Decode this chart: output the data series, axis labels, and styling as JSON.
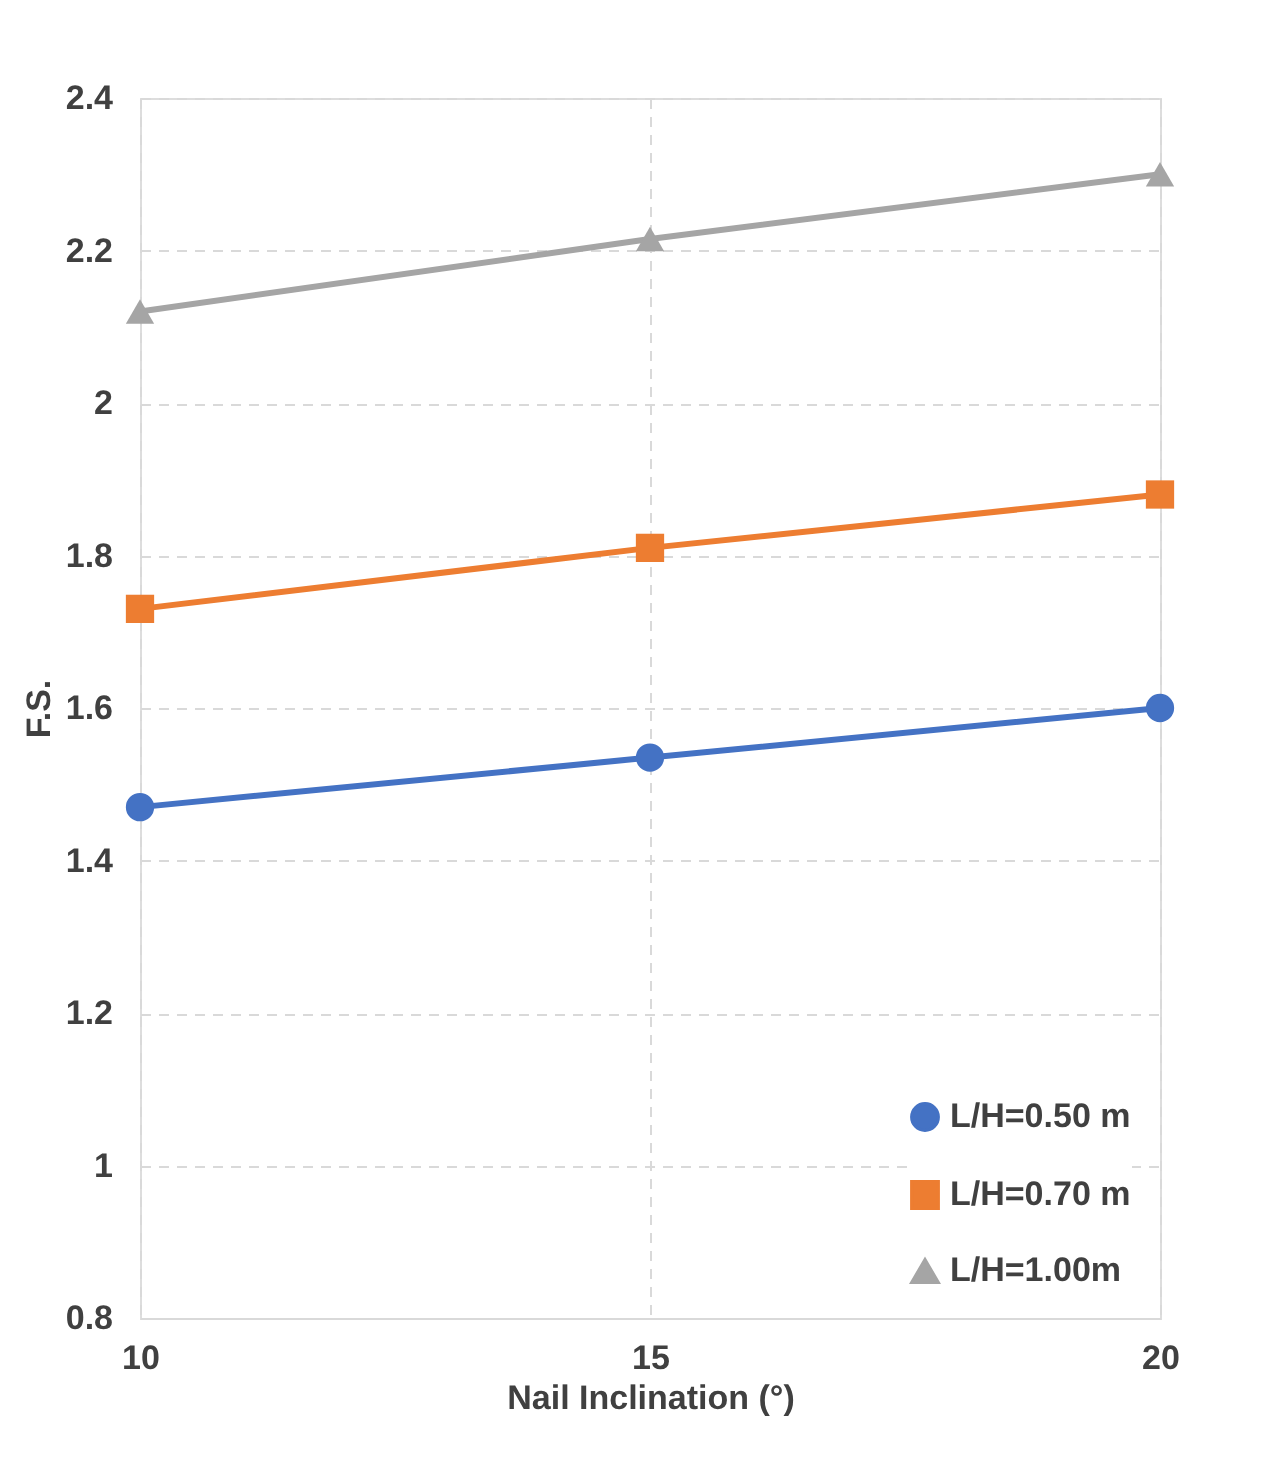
{
  "chart_data": {
    "type": "line",
    "xlabel": "Nail Inclination (°)",
    "ylabel": "F.S.",
    "x": [
      10,
      15,
      20
    ],
    "series": [
      {
        "name": "L/H=0.50 m",
        "color": "#4472c4",
        "marker": "circle",
        "values": [
          1.47,
          1.535,
          1.6
        ]
      },
      {
        "name": "L/H=0.70 m",
        "color": "#ed7d31",
        "marker": "square",
        "values": [
          1.73,
          1.81,
          1.88
        ]
      },
      {
        "name": "L/H=1.00m",
        "color": "#a5a5a5",
        "marker": "triangle",
        "values": [
          2.12,
          2.215,
          2.3
        ]
      }
    ],
    "xlim": [
      10,
      20
    ],
    "xticks": [
      10,
      15,
      20
    ],
    "ylim": [
      0.8,
      2.4
    ],
    "yticks": [
      0.8,
      1,
      1.2,
      1.4,
      1.6,
      1.8,
      2,
      2.2,
      2.4
    ],
    "grid": true,
    "legend": "bottom right",
    "line_style": "solid"
  }
}
